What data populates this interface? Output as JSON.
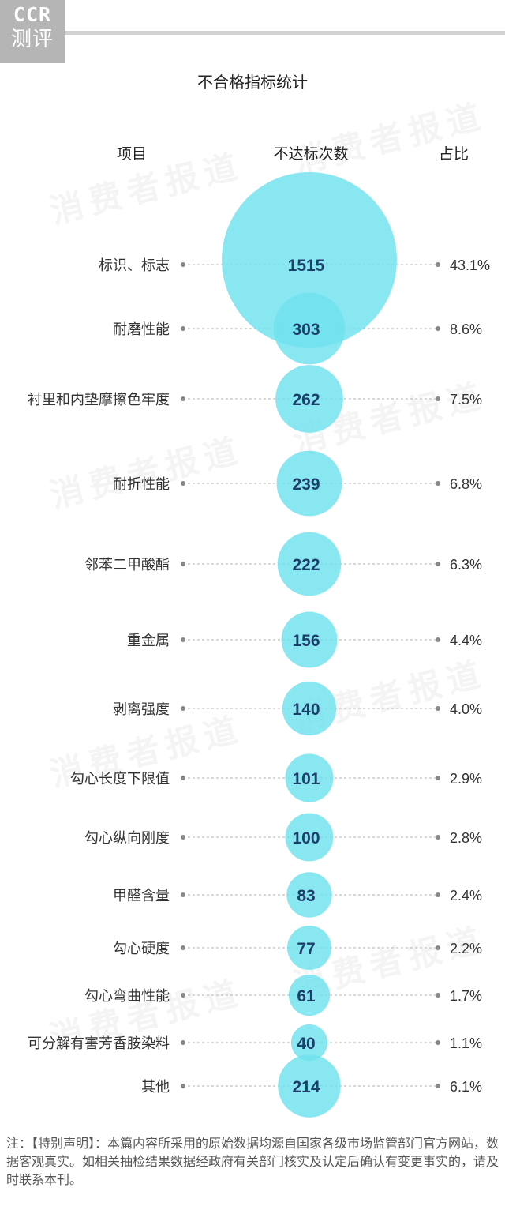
{
  "brand": {
    "logo_top": "CCR",
    "logo_bottom": "测评"
  },
  "watermark": "消费者报道",
  "footnote": "注：【特别声明】：本篇内容所采用的原始数据均源自国家各级市场监管部门官方网站，数据客观真实。如相关抽检结果数据经政府有关部门核实及认定后确认有变更事实的，请及时联系本刊。",
  "colors": {
    "bubble": "#6fe2ee",
    "bubble_dark": "#3fd5e5",
    "value_text": "#1f3f6b",
    "leader_line": "#b0b0b0"
  },
  "chart_data": {
    "type": "bubble",
    "title": "不合格指标统计",
    "columns": {
      "item": "项目",
      "count": "不达标次数",
      "share": "占比"
    },
    "categories": [
      "标识、标志",
      "耐磨性能",
      "衬里和内垫摩擦色牢度",
      "耐折性能",
      "邻苯二甲酸酯",
      "重金属",
      "剥离强度",
      "勾心长度下限值",
      "勾心纵向刚度",
      "甲醛含量",
      "勾心硬度",
      "勾心弯曲性能",
      "可分解有害芳香胺染料",
      "其他"
    ],
    "values": [
      1515,
      303,
      262,
      239,
      222,
      156,
      140,
      101,
      100,
      83,
      77,
      61,
      40,
      214
    ],
    "shares": [
      "43.1%",
      "8.6%",
      "7.5%",
      "6.8%",
      "6.3%",
      "4.4%",
      "4.0%",
      "2.9%",
      "2.8%",
      "2.4%",
      "2.2%",
      "1.7%",
      "1.1%",
      "6.1%"
    ],
    "legend": "none",
    "grid": false
  }
}
